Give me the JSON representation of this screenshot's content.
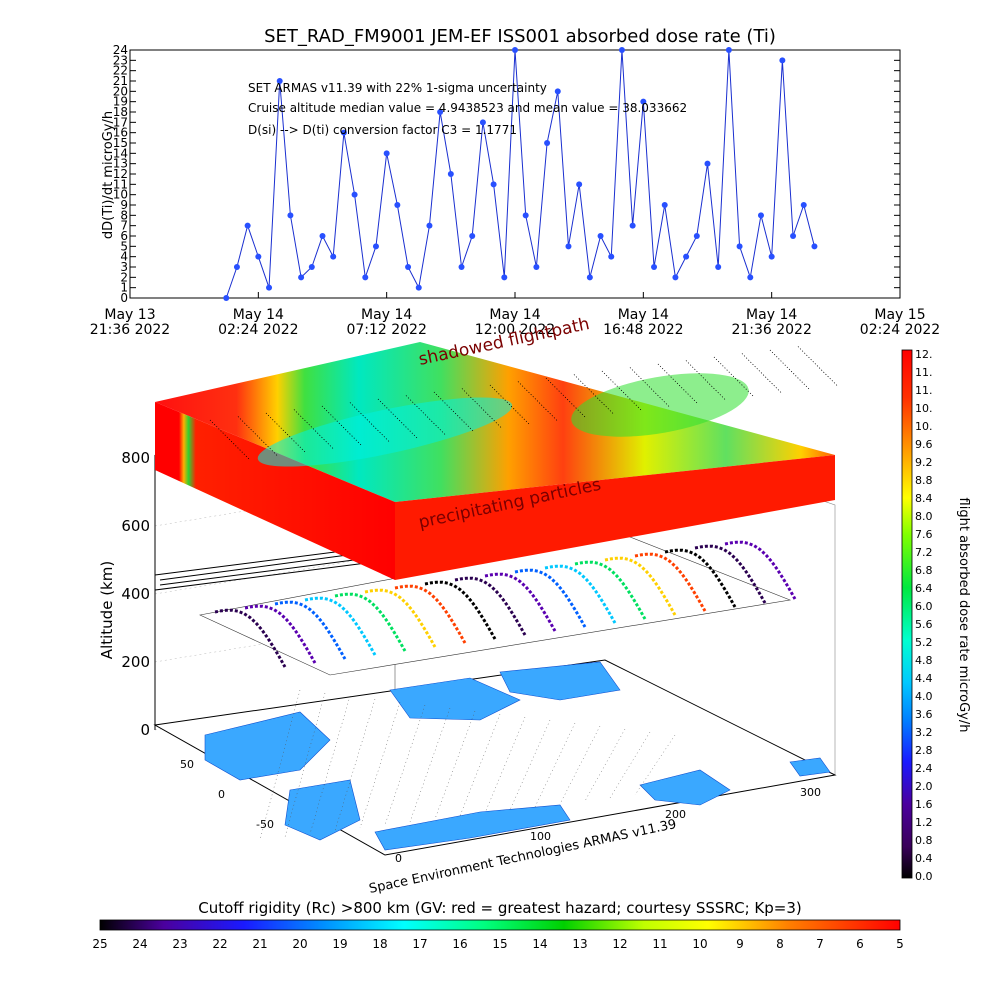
{
  "title": "SET_RAD_FM9001  JEM-EF ISS001 absorbed dose rate (Ti)",
  "annotations": [
    "SET ARMAS v11.39 with 22% 1-sigma uncertainty",
    "Cruise altitude median value = 4.9438523 and mean value = 38.033662",
    "D(si) --> D(ti) conversion factor C3 = 1.1771"
  ],
  "labels": {
    "shadowed": "shadowed flightpath",
    "precip": "precipitating particles",
    "credit": "Space Environment Technologies ARMAS v11.39",
    "cutoff_title": "Cutoff rigidity (Rc) >800 km (GV: red = greatest hazard; courtesy SSSRC; Kp=3)",
    "colorbar_title": "flight absorbed dose rate microGy/h",
    "altitude_label": "Altitude (km)"
  },
  "map_ticks": {
    "lat": [
      "50",
      "0",
      "-50"
    ],
    "lon": [
      "0",
      "100",
      "200",
      "300"
    ]
  },
  "chart_data": [
    {
      "type": "line",
      "title": "SET_RAD_FM9001  JEM-EF ISS001 absorbed dose rate (Ti)",
      "ylabel": "dD(Ti)/dt microGy/h",
      "xlabel": "",
      "ylim": [
        0,
        24
      ],
      "y_ticks": [
        "0",
        "1",
        "2",
        "3",
        "4",
        "5",
        "6",
        "7",
        "8",
        "9",
        "10",
        "11",
        "12",
        "13",
        "14",
        "15",
        "16",
        "17",
        "18",
        "19",
        "20",
        "21",
        "22",
        "23",
        "24"
      ],
      "x_ticks": [
        {
          "date": "May 13",
          "time": "21:36 2022"
        },
        {
          "date": "May 14",
          "time": "02:24 2022"
        },
        {
          "date": "May 14",
          "time": "07:12 2022"
        },
        {
          "date": "May 14",
          "time": "12:00 2022"
        },
        {
          "date": "May 14",
          "time": "16:48 2022"
        },
        {
          "date": "May 14",
          "time": "21:36 2022"
        },
        {
          "date": "May 15",
          "time": "02:24 2022"
        }
      ],
      "x_hours": [
        3.6,
        4.0,
        4.4,
        4.8,
        5.2,
        5.6,
        6.0,
        6.4,
        6.8,
        7.2,
        7.6,
        8.0,
        8.4,
        8.8,
        9.2,
        9.6,
        10.0,
        10.4,
        10.8,
        11.2,
        11.6,
        12.0,
        12.4,
        12.8,
        13.2,
        13.6,
        14.0,
        14.4,
        14.8,
        15.2,
        15.6,
        16.0,
        16.4,
        16.8,
        17.2,
        17.6,
        18.0,
        18.4,
        18.8,
        19.2,
        19.6,
        20.0,
        20.4,
        20.8,
        21.2,
        21.6,
        22.0,
        22.4,
        22.8,
        23.2,
        23.6,
        24.0,
        24.4,
        24.8,
        25.2,
        25.6
      ],
      "values": [
        0,
        3,
        7,
        4,
        1,
        21,
        8,
        2,
        3,
        6,
        4,
        16,
        10,
        2,
        5,
        14,
        9,
        3,
        1,
        7,
        18,
        12,
        3,
        6,
        17,
        11,
        2,
        24,
        8,
        3,
        15,
        20,
        5,
        11,
        2,
        6,
        4,
        24,
        7,
        19,
        3,
        9,
        2,
        4,
        6,
        13,
        3,
        24,
        5,
        2,
        8,
        4,
        23,
        6,
        9,
        5
      ],
      "series": [
        {
          "values_ref": "values"
        }
      ]
    },
    {
      "type": "heatmap",
      "title": "",
      "zlabel": "Altitude (km)",
      "z_ticks": [
        "0",
        "200",
        "400",
        "600",
        "800"
      ],
      "colorbar": {
        "label": "flight absorbed dose rate microGy/h",
        "ticks": [
          "0.0",
          "0.4",
          "0.8",
          "1.2",
          "1.6",
          "2.0",
          "2.4",
          "2.8",
          "3.2",
          "3.6",
          "4.0",
          "4.4",
          "4.8",
          "5.2",
          "5.6",
          "6.0",
          "6.4",
          "6.8",
          "7.2",
          "7.6",
          "8.0",
          "8.4",
          "8.8",
          "9.2",
          "9.6",
          "10.",
          "10.",
          "11.",
          "11.",
          "12."
        ],
        "min": 0,
        "max": 12
      },
      "cutoff_colorbar": {
        "label": "Cutoff rigidity (Rc) >800 km (GV: red = greatest hazard; courtesy SSSRC; Kp=3)",
        "ticks": [
          "25",
          "24",
          "23",
          "22",
          "21",
          "20",
          "19",
          "18",
          "17",
          "16",
          "15",
          "14",
          "13",
          "12",
          "11",
          "10",
          "9",
          "8",
          "7",
          "6",
          "5"
        ]
      }
    }
  ]
}
